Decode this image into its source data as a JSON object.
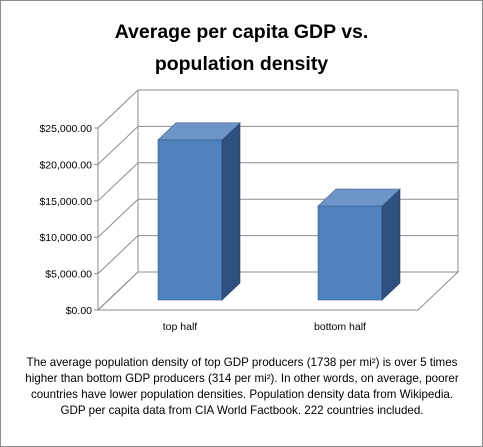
{
  "chart_data": {
    "type": "bar",
    "title": "Average per capita GDP vs.\npopulation density",
    "categories": [
      "top half",
      "bottom half"
    ],
    "values": [
      22000,
      12900
    ],
    "ylim": [
      0,
      25000
    ],
    "yticks": [
      0,
      5000,
      10000,
      15000,
      20000,
      25000
    ],
    "ytick_labels": [
      "$0.00",
      "$5,000.00",
      "$10,000.00",
      "$15,000.00",
      "$20,000.00",
      "$25,000.00"
    ],
    "xlabel": "",
    "ylabel": "",
    "grid": true,
    "three_d": true,
    "legend": "none",
    "colors": {
      "bar_front": "#4f81bd",
      "bar_side": "#2f5180",
      "bar_top": "#6d95c8",
      "grid": "#8c8c8c"
    }
  },
  "caption": "The average population density of top GDP producers (1738  per mi²) is over 5 times higher than bottom GDP producers (314  per mi²).  In other words, on average, poorer countries have lower population densities. Population density data from Wikipedia. GDP per capita data from CIA World Factbook. 222 countries included."
}
